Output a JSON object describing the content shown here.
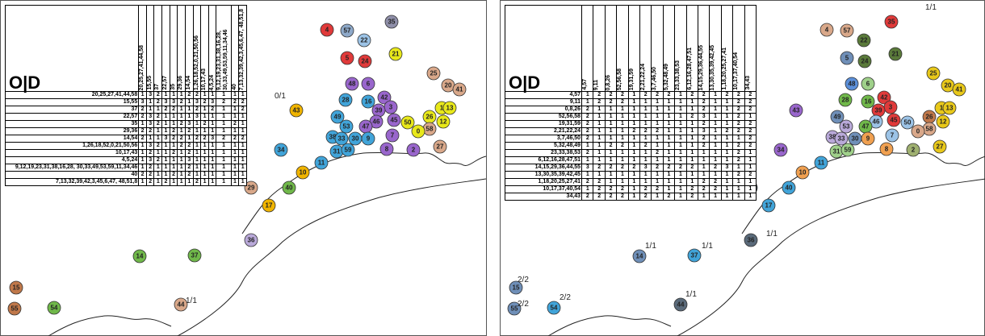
{
  "panels": [
    {
      "title": "O|D",
      "table": {
        "columns": [
          "20,25,27,41,44,58",
          "15,55",
          "37",
          "22,57",
          "35",
          "29,36",
          "14,54",
          "1,26,18,52,0,21,50,56",
          "10,17,43",
          "4,5,24",
          "9,12,19,23,31,38,16,28, 30,33,49,53,59,11,34,46",
          "40",
          "7,13,32,39,42,3,45,6,47, 48,51,8"
        ],
        "rows": [
          {
            "label": "20,25,27,41,44,58",
            "cells": [
              1,
              3,
              2,
              1,
              1,
              1,
              2,
              2,
              1,
              1,
              1,
              1,
              1
            ]
          },
          {
            "label": "15,55",
            "cells": [
              3,
              1,
              2,
              3,
              3,
              2,
              1,
              3,
              2,
              3,
              2,
              2,
              2
            ]
          },
          {
            "label": "37",
            "cells": [
              2,
              1,
              1,
              2,
              2,
              1,
              1,
              2,
              1,
              2,
              1,
              1,
              2
            ]
          },
          {
            "label": "22,57",
            "cells": [
              2,
              3,
              2,
              1,
              1,
              1,
              1,
              3,
              1,
              1,
              1,
              1,
              1
            ]
          },
          {
            "label": "35",
            "cells": [
              1,
              3,
              2,
              1,
              1,
              2,
              3,
              1,
              2,
              1,
              1,
              2,
              1
            ]
          },
          {
            "label": "29,36",
            "cells": [
              2,
              2,
              1,
              1,
              2,
              1,
              2,
              1,
              1,
              1,
              1,
              1,
              1
            ]
          },
          {
            "label": "14,54",
            "cells": [
              2,
              1,
              1,
              3,
              2,
              2,
              1,
              2,
              2,
              3,
              2,
              2,
              2
            ]
          },
          {
            "label": "1,26,18,52,0,21,50,56",
            "cells": [
              1,
              3,
              2,
              1,
              1,
              2,
              2,
              1,
              1,
              1,
              1,
              1,
              1
            ]
          },
          {
            "label": "10,17,43",
            "cells": [
              1,
              2,
              1,
              1,
              2,
              1,
              2,
              1,
              1,
              1,
              1,
              1,
              1
            ]
          },
          {
            "label": "4,5,24",
            "cells": [
              1,
              3,
              2,
              1,
              1,
              1,
              3,
              1,
              1,
              1,
              1,
              1,
              1
            ]
          },
          {
            "label": "9,12,19,23,31,38,16,28, 30,33,49,53,59,11,34,46",
            "cells": [
              1,
              2,
              1,
              1,
              1,
              1,
              2,
              1,
              1,
              1,
              1,
              1,
              1
            ]
          },
          {
            "label": "40",
            "cells": [
              2,
              2,
              1,
              1,
              2,
              1,
              2,
              1,
              1,
              1,
              1,
              1,
              1
            ]
          },
          {
            "label": "7,13,32,39,42,3,45,6,47, 48,51,8",
            "cells": [
              1,
              2,
              1,
              2,
              1,
              1,
              1,
              2,
              1,
              1,
              1,
              1,
              1
            ]
          }
        ]
      },
      "nodes": [
        {
          "label": "4",
          "color": "#e03a3a"
        },
        {
          "label": "57",
          "color": "#8ea9c9"
        },
        {
          "label": "35",
          "color": "#8e8ea8"
        },
        {
          "label": "22",
          "color": "#9cc3e6"
        },
        {
          "label": "21",
          "color": "#e8e81a"
        },
        {
          "label": "5",
          "color": "#e03a3a"
        },
        {
          "label": "24",
          "color": "#e03a3a"
        },
        {
          "label": "48",
          "color": "#9966cc"
        },
        {
          "label": "6",
          "color": "#9966cc"
        },
        {
          "label": "25",
          "color": "#d9a88a"
        },
        {
          "label": "20",
          "color": "#d9a88a"
        },
        {
          "label": "41",
          "color": "#d9a88a"
        },
        {
          "label": "28",
          "color": "#41a4d9"
        },
        {
          "label": "16",
          "color": "#41a4d9"
        },
        {
          "label": "42",
          "color": "#9966cc"
        },
        {
          "label": "49",
          "color": "#41a4d9"
        },
        {
          "label": "3",
          "color": "#9966cc"
        },
        {
          "label": "39",
          "color": "#9966cc"
        },
        {
          "label": "1",
          "color": "#e8e81a"
        },
        {
          "label": "13",
          "color": "#e8e81a"
        },
        {
          "label": "26",
          "color": "#e8e81a"
        },
        {
          "label": "12",
          "color": "#e8e81a"
        },
        {
          "label": "45",
          "color": "#9966cc"
        },
        {
          "label": "46",
          "color": "#9966cc"
        },
        {
          "label": "50",
          "color": "#e8e81a"
        },
        {
          "label": "58",
          "color": "#d9a88a"
        },
        {
          "label": "38",
          "color": "#41a4d9"
        },
        {
          "label": "53",
          "color": "#41a4d9"
        },
        {
          "label": "47",
          "color": "#9966cc"
        },
        {
          "label": "30",
          "color": "#41a4d9"
        },
        {
          "label": "33",
          "color": "#41a4d9"
        },
        {
          "label": "9",
          "color": "#41a4d9"
        },
        {
          "label": "7",
          "color": "#9966cc"
        },
        {
          "label": "31",
          "color": "#41a4d9"
        },
        {
          "label": "59",
          "color": "#41a4d9"
        },
        {
          "label": "8",
          "color": "#9966cc"
        },
        {
          "label": "2",
          "color": "#9966cc"
        },
        {
          "label": "27",
          "color": "#d9a88a"
        },
        {
          "label": "34",
          "color": "#41a4d9"
        },
        {
          "label": "11",
          "color": "#41a4d9"
        },
        {
          "label": "10",
          "color": "#f0b400"
        },
        {
          "label": "40",
          "color": "#70b84a"
        },
        {
          "label": "29",
          "color": "#d9a88a"
        },
        {
          "label": "17",
          "color": "#f0b400"
        },
        {
          "label": "36",
          "color": "#b9a9d9"
        },
        {
          "label": "14",
          "color": "#70b84a"
        },
        {
          "label": "37",
          "color": "#70b84a"
        },
        {
          "label": "15",
          "color": "#c0784a"
        },
        {
          "label": "55",
          "color": "#c0784a"
        },
        {
          "label": "54",
          "color": "#70b84a"
        },
        {
          "label": "44",
          "color": "#d9a88a"
        },
        {
          "label": "43",
          "color": "#f0b400"
        },
        {
          "label": "0",
          "color": "#e8e81a"
        }
      ],
      "annotations": [
        "0/1",
        "1/1"
      ]
    },
    {
      "title": "O|D",
      "table": {
        "columns": [
          "4,57",
          "9,11",
          "0,8,26",
          "52,56,58",
          "19,31,59",
          "2,21,22,24",
          "3,7,46,50",
          "5,32,48,49",
          "23,33,38,53",
          "6,12,16,28,47,51",
          "14,15,29,36,44,55",
          "13,30,35,39,42,45",
          "1,18,20,25,27,41",
          "10,17,37,40,54",
          "34,43"
        ],
        "rows": [
          {
            "label": "4,57",
            "cells": [
              1,
              2,
              2,
              2,
              1,
              2,
              2,
              2,
              1,
              2,
              2,
              1,
              2,
              2,
              2
            ]
          },
          {
            "label": "9,11",
            "cells": [
              1,
              2,
              2,
              2,
              1,
              1,
              1,
              1,
              1,
              1,
              2,
              1,
              1,
              2,
              2
            ]
          },
          {
            "label": "0,8,26",
            "cells": [
              2,
              1,
              1,
              1,
              1,
              1,
              1,
              1,
              1,
              1,
              2,
              1,
              1,
              2,
              2
            ]
          },
          {
            "label": "52,56,58",
            "cells": [
              2,
              1,
              1,
              1,
              1,
              1,
              1,
              1,
              1,
              2,
              3,
              1,
              1,
              2,
              1
            ]
          },
          {
            "label": "19,31,59",
            "cells": [
              2,
              1,
              1,
              1,
              1,
              1,
              1,
              1,
              1,
              1,
              2,
              1,
              1,
              2,
              2
            ]
          },
          {
            "label": "2,21,22,24",
            "cells": [
              2,
              1,
              1,
              1,
              2,
              2,
              2,
              1,
              1,
              1,
              3,
              1,
              2,
              2,
              2
            ]
          },
          {
            "label": "3,7,46,50",
            "cells": [
              2,
              1,
              1,
              1,
              1,
              1,
              1,
              1,
              1,
              1,
              2,
              1,
              1,
              1,
              2
            ]
          },
          {
            "label": "5,32,48,49",
            "cells": [
              1,
              1,
              2,
              2,
              1,
              2,
              1,
              1,
              1,
              1,
              2,
              1,
              1,
              2,
              2
            ]
          },
          {
            "label": "23,33,38,53",
            "cells": [
              2,
              1,
              1,
              1,
              1,
              1,
              2,
              1,
              1,
              1,
              1,
              1,
              1,
              2,
              1
            ]
          },
          {
            "label": "6,12,16,28,47,51",
            "cells": [
              1,
              1,
              1,
              1,
              1,
              1,
              1,
              1,
              1,
              1,
              1,
              1,
              1,
              2,
              1
            ]
          },
          {
            "label": "14,15,29,36,44,55",
            "cells": [
              3,
              2,
              2,
              2,
              2,
              3,
              2,
              2,
              2,
              2,
              1,
              2,
              3,
              1,
              1
            ]
          },
          {
            "label": "13,30,35,39,42,45",
            "cells": [
              1,
              1,
              1,
              1,
              1,
              1,
              1,
              1,
              1,
              1,
              1,
              1,
              1,
              2,
              2
            ]
          },
          {
            "label": "1,18,20,25,27,41",
            "cells": [
              2,
              2,
              1,
              1,
              1,
              1,
              1,
              1,
              1,
              1,
              2,
              2,
              1,
              1,
              1
            ]
          },
          {
            "label": "10,17,37,40,54",
            "cells": [
              1,
              2,
              2,
              2,
              1,
              2,
              2,
              1,
              1,
              2,
              2,
              2,
              1,
              1,
              1
            ]
          },
          {
            "label": "34,43",
            "cells": [
              2,
              2,
              2,
              2,
              1,
              2,
              1,
              2,
              1,
              2,
              1,
              1,
              1,
              1,
              1
            ]
          }
        ]
      },
      "nodes": [
        {
          "label": "4",
          "color": "#d9a88a"
        },
        {
          "label": "57",
          "color": "#d9a88a"
        },
        {
          "label": "35",
          "color": "#e03a3a"
        },
        {
          "label": "22",
          "color": "#5a7a3a"
        },
        {
          "label": "21",
          "color": "#5a7a3a"
        },
        {
          "label": "5",
          "color": "#6f8fb8"
        },
        {
          "label": "24",
          "color": "#5a7a3a"
        },
        {
          "label": "48",
          "color": "#5b8fd9"
        },
        {
          "label": "6",
          "color": "#9fd08a"
        },
        {
          "label": "25",
          "color": "#e8c81a"
        },
        {
          "label": "20",
          "color": "#e8c81a"
        },
        {
          "label": "41",
          "color": "#e8c81a"
        },
        {
          "label": "28",
          "color": "#70b84a"
        },
        {
          "label": "16",
          "color": "#70b84a"
        },
        {
          "label": "42",
          "color": "#e03a3a"
        },
        {
          "label": "49",
          "color": "#6f8fb8"
        },
        {
          "label": "3",
          "color": "#e03a3a"
        },
        {
          "label": "39",
          "color": "#e03a3a"
        },
        {
          "label": "1",
          "color": "#e8c81a"
        },
        {
          "label": "13",
          "color": "#e8c81a"
        },
        {
          "label": "26",
          "color": "#c0784a"
        },
        {
          "label": "12",
          "color": "#e8c81a"
        },
        {
          "label": "45",
          "color": "#e03a3a"
        },
        {
          "label": "46",
          "color": "#9cc3e6"
        },
        {
          "label": "50",
          "color": "#9cc3e6"
        },
        {
          "label": "58",
          "color": "#d9a88a"
        },
        {
          "label": "38",
          "color": "#b9a9d9"
        },
        {
          "label": "53",
          "color": "#b9a9d9"
        },
        {
          "label": "47",
          "color": "#70b84a"
        },
        {
          "label": "30",
          "color": "#6f8fb8"
        },
        {
          "label": "33",
          "color": "#b9a9d9"
        },
        {
          "label": "9",
          "color": "#f0a050"
        },
        {
          "label": "7",
          "color": "#9cc3e6"
        },
        {
          "label": "31",
          "color": "#9fd08a"
        },
        {
          "label": "59",
          "color": "#9fd08a"
        },
        {
          "label": "8",
          "color": "#f0a050"
        },
        {
          "label": "2",
          "color": "#9fb070"
        },
        {
          "label": "27",
          "color": "#e8c81a"
        },
        {
          "label": "34",
          "color": "#9966cc"
        },
        {
          "label": "11",
          "color": "#41a4d9"
        },
        {
          "label": "10",
          "color": "#f0a050"
        },
        {
          "label": "40",
          "color": "#41a4d9"
        },
        {
          "label": "29",
          "color": "#5a6a7a"
        },
        {
          "label": "17",
          "color": "#41a4d9"
        },
        {
          "label": "36",
          "color": "#5a6a7a"
        },
        {
          "label": "14",
          "color": "#6f8fb8"
        },
        {
          "label": "37",
          "color": "#41a4d9"
        },
        {
          "label": "15",
          "color": "#6f8fb8"
        },
        {
          "label": "55",
          "color": "#6f8fb8"
        },
        {
          "label": "54",
          "color": "#41a4d9"
        },
        {
          "label": "44",
          "color": "#5a6a7a"
        },
        {
          "label": "43",
          "color": "#9966cc"
        },
        {
          "label": "0",
          "color": "#d9a88a"
        }
      ],
      "annotations": [
        "1/1",
        "1/1",
        "1/1",
        "1/1",
        "2/2",
        "2/2",
        "2/2",
        "1/1"
      ]
    }
  ]
}
